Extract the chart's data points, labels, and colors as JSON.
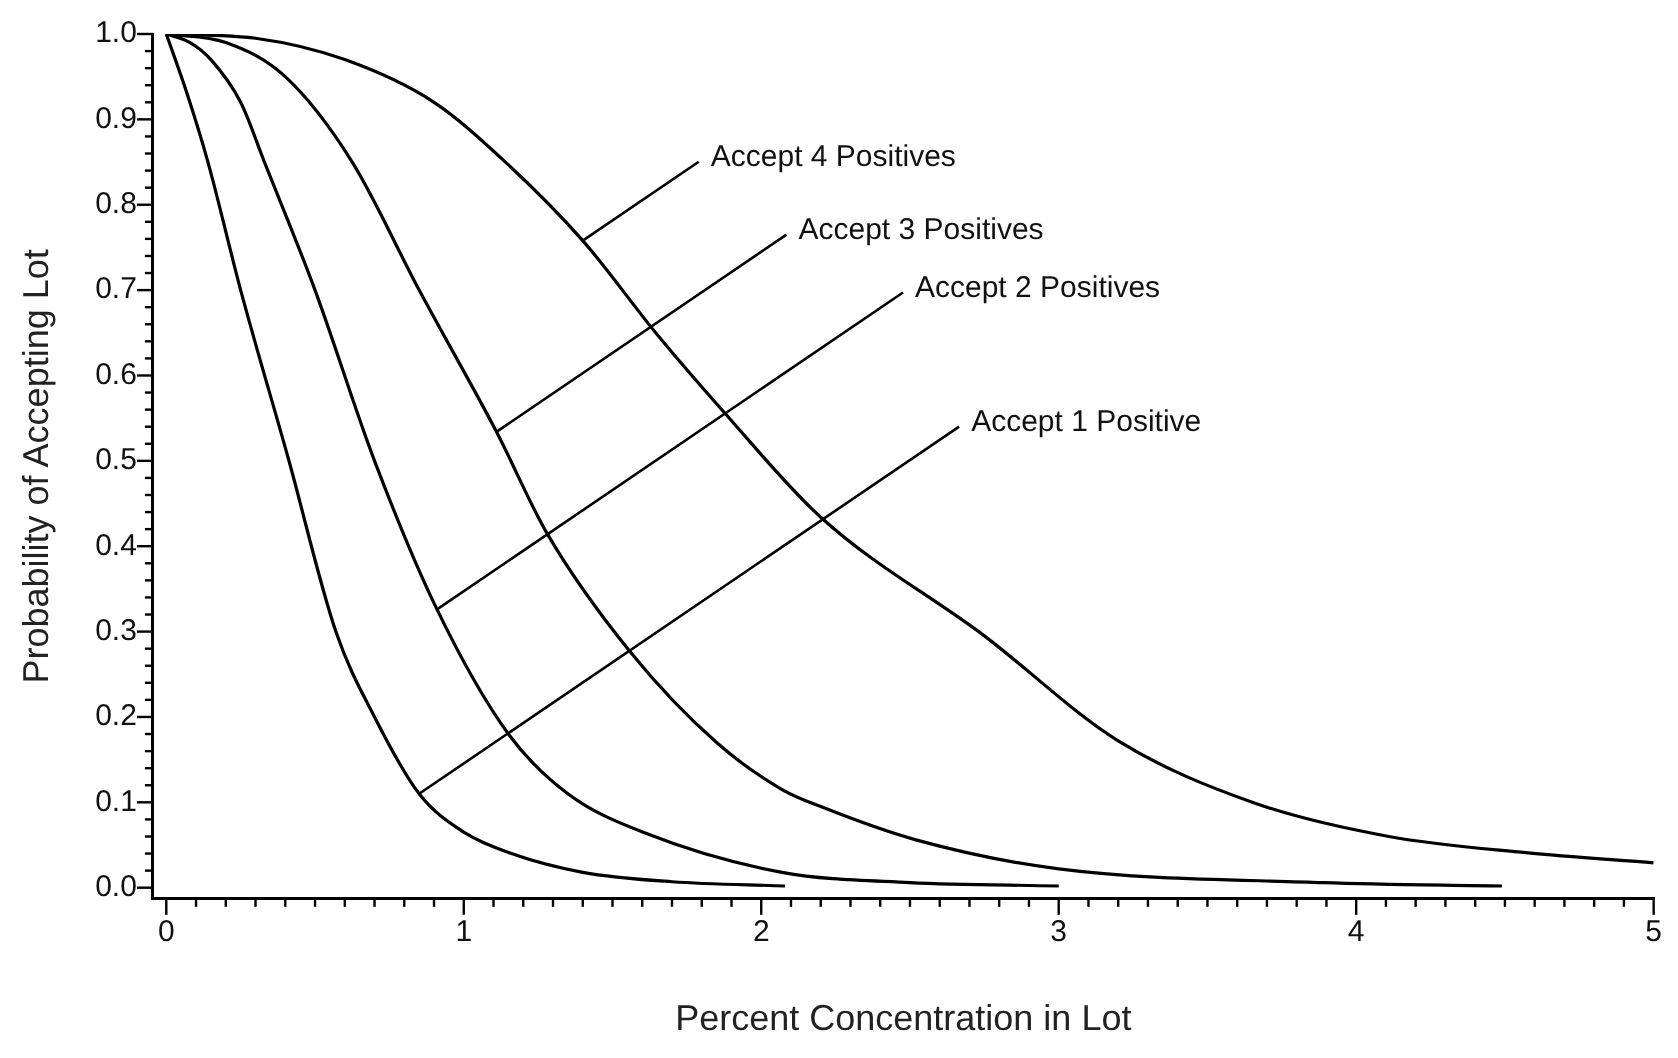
{
  "chart_data": {
    "type": "line",
    "xlabel": "Percent Concentration in Lot",
    "ylabel": "Probability of Accepting Lot",
    "series": [
      {
        "color": "#000000",
        "x": [
          0,
          0.07,
          0.14,
          0.25,
          0.41,
          0.57,
          0.7,
          0.85,
          1.0,
          1.16,
          1.4,
          1.7,
          2.08
        ],
        "values": [
          1,
          0.93,
          0.85,
          0.7,
          0.503,
          0.3,
          0.2,
          0.11,
          0.065,
          0.04,
          0.018,
          0.007,
          0.002
        ]
      },
      {
        "color": "#000000",
        "x": [
          0,
          0.08,
          0.15,
          0.25,
          0.33,
          0.5,
          0.7,
          0.91,
          1.15,
          1.35,
          1.61,
          2.07,
          2.5,
          3.0
        ],
        "values": [
          1,
          0.99,
          0.97,
          0.92,
          0.85,
          0.7,
          0.5,
          0.326,
          0.18,
          0.11,
          0.064,
          0.018,
          0.006,
          0.002
        ]
      },
      {
        "color": "#000000",
        "x": [
          0,
          0.2,
          0.4,
          0.625,
          0.85,
          1.11,
          1.28,
          1.56,
          1.85,
          2.07,
          2.2,
          2.52,
          3.0,
          3.89,
          4.49
        ],
        "values": [
          1,
          0.99,
          0.95,
          0.85,
          0.7,
          0.534,
          0.415,
          0.276,
          0.17,
          0.115,
          0.095,
          0.056,
          0.022,
          0.006,
          0.002
        ]
      },
      {
        "color": "#000000",
        "x": [
          0,
          0.3,
          0.6,
          0.9,
          1.14,
          1.4,
          1.65,
          1.875,
          2.2,
          2.75,
          3.2,
          3.66,
          4.11,
          4.57,
          5.0
        ],
        "values": [
          1,
          0.995,
          0.97,
          0.92,
          0.85,
          0.758,
          0.648,
          0.557,
          0.434,
          0.295,
          0.172,
          0.099,
          0.06,
          0.041,
          0.029
        ]
      }
    ],
    "annotations": [
      {
        "text": "Accept 1 Positive",
        "x": 0.85,
        "y": 0.11
      },
      {
        "text": "Accept 2 Positives",
        "x": 0.91,
        "y": 0.326
      },
      {
        "text": "Accept 3 Positives",
        "x": 1.11,
        "y": 0.534
      },
      {
        "text": "Accept 4 Positives",
        "x": 1.4,
        "y": 0.758
      }
    ],
    "xlim": [
      -0.045,
      5.0
    ],
    "ylim": [
      -0.013,
      1.0
    ],
    "xticks": [
      0,
      {
        "value": 0.1,
        "label": null
      },
      {
        "value": 0.2,
        "label": null
      },
      {
        "value": 0.3,
        "label": null
      },
      {
        "value": 0.4,
        "label": null
      },
      {
        "value": 0.5,
        "label": null
      },
      {
        "value": 0.6,
        "label": null
      },
      {
        "value": 0.7,
        "label": null
      },
      {
        "value": 0.8,
        "label": null
      },
      {
        "value": 0.9,
        "label": null
      },
      1,
      {
        "value": 1.1,
        "label": null
      },
      {
        "value": 1.2,
        "label": null
      },
      {
        "value": 1.3,
        "label": null
      },
      {
        "value": 1.4,
        "label": null
      },
      {
        "value": 1.5,
        "label": null
      },
      {
        "value": 1.6,
        "label": null
      },
      {
        "value": 1.7,
        "label": null
      },
      {
        "value": 1.8,
        "label": null
      },
      {
        "value": 1.9,
        "label": null
      },
      2,
      {
        "value": 2.1,
        "label": null
      },
      {
        "value": 2.2,
        "label": null
      },
      {
        "value": 2.3,
        "label": null
      },
      {
        "value": 2.4,
        "label": null
      },
      {
        "value": 2.5,
        "label": null
      },
      {
        "value": 2.6,
        "label": null
      },
      {
        "value": 2.7,
        "label": null
      },
      {
        "value": 2.8,
        "label": null
      },
      {
        "value": 2.9,
        "label": null
      },
      3,
      {
        "value": 3.1,
        "label": null
      },
      {
        "value": 3.2,
        "label": null
      },
      {
        "value": 3.3,
        "label": null
      },
      {
        "value": 3.4,
        "label": null
      },
      {
        "value": 3.5,
        "label": null
      },
      {
        "value": 3.6,
        "label": null
      },
      {
        "value": 3.7,
        "label": null
      },
      {
        "value": 3.8,
        "label": null
      },
      {
        "value": 3.9,
        "label": null
      },
      4,
      {
        "value": 4.1,
        "label": null
      },
      {
        "value": 4.2,
        "label": null
      },
      {
        "value": 4.3,
        "label": null
      },
      {
        "value": 4.4,
        "label": null
      },
      {
        "value": 4.5,
        "label": null
      },
      {
        "value": 4.6,
        "label": null
      },
      {
        "value": 4.7,
        "label": null
      },
      {
        "value": 4.8,
        "label": null
      },
      {
        "value": 4.9,
        "label": null
      },
      5
    ],
    "yticks": [
      {
        "value": 0,
        "label": "0.0"
      },
      {
        "value": 0.02,
        "label": null
      },
      {
        "value": 0.04,
        "label": null
      },
      {
        "value": 0.06,
        "label": null
      },
      {
        "value": 0.08,
        "label": null
      },
      0.1,
      {
        "value": 0.12,
        "label": null
      },
      {
        "value": 0.14,
        "label": null
      },
      {
        "value": 0.16,
        "label": null
      },
      {
        "value": 0.18,
        "label": null
      },
      0.2,
      {
        "value": 0.22,
        "label": null
      },
      {
        "value": 0.24,
        "label": null
      },
      {
        "value": 0.26,
        "label": null
      },
      {
        "value": 0.28,
        "label": null
      },
      0.3,
      {
        "value": 0.32,
        "label": null
      },
      {
        "value": 0.34,
        "label": null
      },
      {
        "value": 0.36,
        "label": null
      },
      {
        "value": 0.38,
        "label": null
      },
      0.4,
      {
        "value": 0.42,
        "label": null
      },
      {
        "value": 0.44,
        "label": null
      },
      {
        "value": 0.46,
        "label": null
      },
      {
        "value": 0.48,
        "label": null
      },
      0.5,
      {
        "value": 0.52,
        "label": null
      },
      {
        "value": 0.54,
        "label": null
      },
      {
        "value": 0.56,
        "label": null
      },
      {
        "value": 0.58,
        "label": null
      },
      0.6,
      {
        "value": 0.62,
        "label": null
      },
      {
        "value": 0.64,
        "label": null
      },
      {
        "value": 0.66,
        "label": null
      },
      {
        "value": 0.68,
        "label": null
      },
      0.7,
      {
        "value": 0.72,
        "label": null
      },
      {
        "value": 0.74,
        "label": null
      },
      {
        "value": 0.76,
        "label": null
      },
      {
        "value": 0.78,
        "label": null
      },
      0.8,
      {
        "value": 0.82,
        "label": null
      },
      {
        "value": 0.84,
        "label": null
      },
      {
        "value": 0.86,
        "label": null
      },
      {
        "value": 0.88,
        "label": null
      },
      0.9,
      {
        "value": 0.92,
        "label": null
      },
      {
        "value": 0.94,
        "label": null
      },
      {
        "value": 0.96,
        "label": null
      },
      {
        "value": 0.98,
        "label": null
      },
      {
        "value": 1,
        "label": "1.0"
      }
    ],
    "grid": false,
    "legend": false,
    "marker": "none",
    "line_style": "solid"
  }
}
